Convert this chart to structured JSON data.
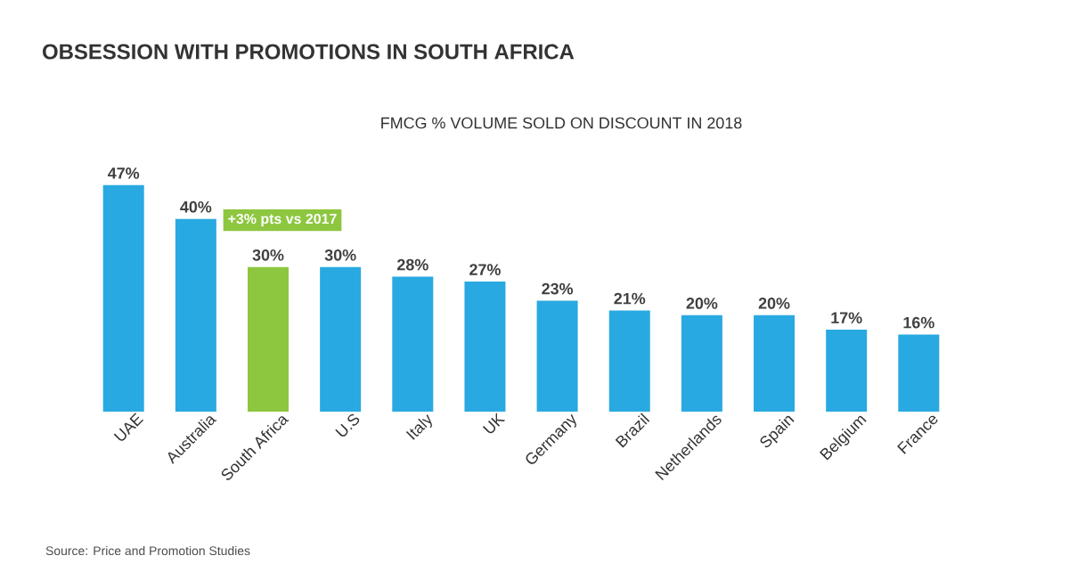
{
  "chart_data": {
    "type": "bar",
    "title": "OBSESSION WITH PROMOTIONS IN SOUTH AFRICA",
    "subtitle": "FMCG % VOLUME SOLD ON DISCOUNT IN 2018",
    "categories": [
      "UAE",
      "Australia",
      "South Africa",
      "U.S",
      "Italy",
      "UK",
      "Germany",
      "Brazil",
      "Netherlands",
      "Spain",
      "Belgium",
      "France"
    ],
    "values": [
      47,
      40,
      30,
      30,
      28,
      27,
      23,
      21,
      20,
      20,
      17,
      16
    ],
    "value_labels": [
      "47%",
      "40%",
      "30%",
      "30%",
      "28%",
      "27%",
      "23%",
      "21%",
      "20%",
      "20%",
      "17%",
      "16%"
    ],
    "colors": [
      "#29a9e1",
      "#29a9e1",
      "#8dc63f",
      "#29a9e1",
      "#29a9e1",
      "#29a9e1",
      "#29a9e1",
      "#29a9e1",
      "#29a9e1",
      "#29a9e1",
      "#29a9e1",
      "#29a9e1"
    ],
    "annotations": [
      {
        "text": "+3% pts vs 2017",
        "x": "South Africa",
        "y": 30
      },
      "Source: Price and Promotion Studies"
    ]
  }
}
